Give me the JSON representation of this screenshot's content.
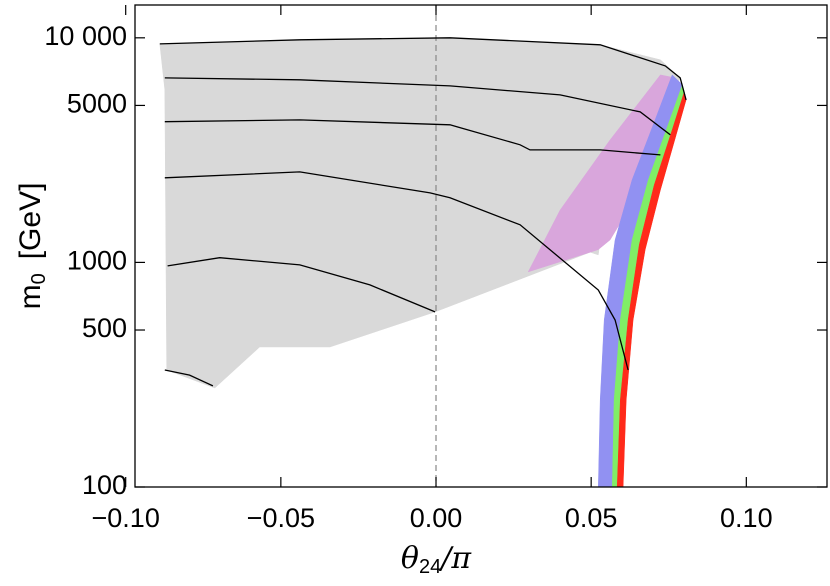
{
  "chart_data": {
    "type": "contour",
    "xlabel": {
      "symbol": "θ",
      "subscript": "24",
      "rest": "/π"
    },
    "ylabel": {
      "symbol": "m",
      "subscript": "0",
      "rest": "[GeV]"
    },
    "xlim": [
      -0.097,
      0.126
    ],
    "ylim": [
      100,
      14000
    ],
    "ylog": true,
    "xticks": [
      {
        "value": -0.1,
        "label": "−0.10"
      },
      {
        "value": -0.05,
        "label": "−0.05"
      },
      {
        "value": 0,
        "label": "0.00"
      },
      {
        "value": 0.05,
        "label": "0.05"
      },
      {
        "value": 0.1,
        "label": "0.10"
      }
    ],
    "yticks": [
      100,
      500,
      {
        "value": 1000,
        "label": "1000"
      },
      5000,
      {
        "value": 10000,
        "label": "10 000"
      }
    ],
    "reference_x": 0,
    "regions": [
      {
        "color": "#d9d9d9",
        "x": [
          -0.089,
          -0.0439,
          0.0045,
          0.0529,
          0.0723,
          0.0787,
          0.0658,
          0.0529,
          0.0523,
          0.0497,
          -0.0003,
          -0.0342,
          -0.0568,
          -0.0713,
          -0.0868,
          -0.0874
        ],
        "y": [
          9400,
          9795,
          10000,
          9310,
          7980,
          6630,
          2860,
          1260,
          1080,
          1110,
          602,
          420,
          420,
          276,
          332,
          5870
        ]
      },
      {
        "color": "#d9a6dc",
        "x": [
          0.0297,
          0.04,
          0.0561,
          0.0723,
          0.0771,
          0.0723,
          0.0658,
          0.0561,
          0.0523,
          0.0497
        ],
        "y": [
          907,
          1710,
          3510,
          6840,
          6630,
          3170,
          2100,
          1260,
          1140,
          1110
        ]
      },
      {
        "color": "#9191f2",
        "x": [
          0.0761,
          0.0706,
          0.0632,
          0.0577,
          0.0542,
          0.0529,
          0.0523,
          0.0568,
          0.0574,
          0.0594,
          0.0632,
          0.0684,
          0.0748,
          0.0794
        ],
        "y": [
          6840,
          4310,
          2330,
          1260,
          554,
          244,
          100,
          100,
          244,
          554,
          1260,
          2330,
          4100,
          6180
        ]
      },
      {
        "color": "#80ee66",
        "x": [
          0.0794,
          0.0748,
          0.0684,
          0.0632,
          0.0594,
          0.0574,
          0.0568,
          0.0584,
          0.0594,
          0.0619,
          0.0655,
          0.0703,
          0.0761,
          0.08
        ],
        "y": [
          6180,
          4100,
          2330,
          1260,
          554,
          244,
          100,
          100,
          244,
          554,
          1200,
          2210,
          3890,
          5750
        ]
      },
      {
        "color": "#ff2a1a",
        "x": [
          0.08,
          0.0761,
          0.0703,
          0.0655,
          0.0619,
          0.0594,
          0.0584,
          0.0603,
          0.0613,
          0.0635,
          0.0674,
          0.0723,
          0.0774,
          0.0806
        ],
        "y": [
          5750,
          3890,
          2210,
          1200,
          554,
          244,
          100,
          100,
          244,
          554,
          1140,
          2100,
          3700,
          5290
        ]
      }
    ],
    "contours": [
      {
        "color": "#000000",
        "x": [
          -0.089,
          -0.0439,
          0.0045,
          0.0529,
          0.0739,
          0.0787,
          0.0806
        ],
        "y": [
          9400,
          9795,
          10000,
          9310,
          7500,
          6630,
          5290
        ]
      },
      {
        "color": "#000000",
        "x": [
          -0.0874,
          -0.0439,
          0.0045,
          0.04,
          0.0658,
          0.0755
        ],
        "y": [
          6630,
          6500,
          6110,
          5570,
          4680,
          3700
        ]
      },
      {
        "color": "#000000",
        "x": [
          -0.0874,
          -0.0439,
          0.0045,
          0.0271,
          0.0303,
          0.0529,
          0.0723
        ],
        "y": [
          4230,
          4310,
          4100,
          3340,
          3170,
          3170,
          3010
        ]
      },
      {
        "color": "#000000",
        "x": [
          -0.0874,
          -0.0439,
          -0.0019,
          0.0045,
          0.0271,
          0.0523,
          0.0577,
          0.0619
        ],
        "y": [
          2380,
          2530,
          2040,
          1940,
          1470,
          754,
          554,
          332
        ]
      },
      {
        "color": "#000000",
        "x": [
          -0.0865,
          -0.0697,
          -0.0439,
          -0.0213,
          -0.0003
        ],
        "y": [
          965,
          1050,
          975,
          794,
          602
        ]
      },
      {
        "color": "#000000",
        "x": [
          -0.0874,
          -0.0794,
          -0.0719
        ],
        "y": [
          332,
          315,
          282
        ]
      }
    ]
  }
}
